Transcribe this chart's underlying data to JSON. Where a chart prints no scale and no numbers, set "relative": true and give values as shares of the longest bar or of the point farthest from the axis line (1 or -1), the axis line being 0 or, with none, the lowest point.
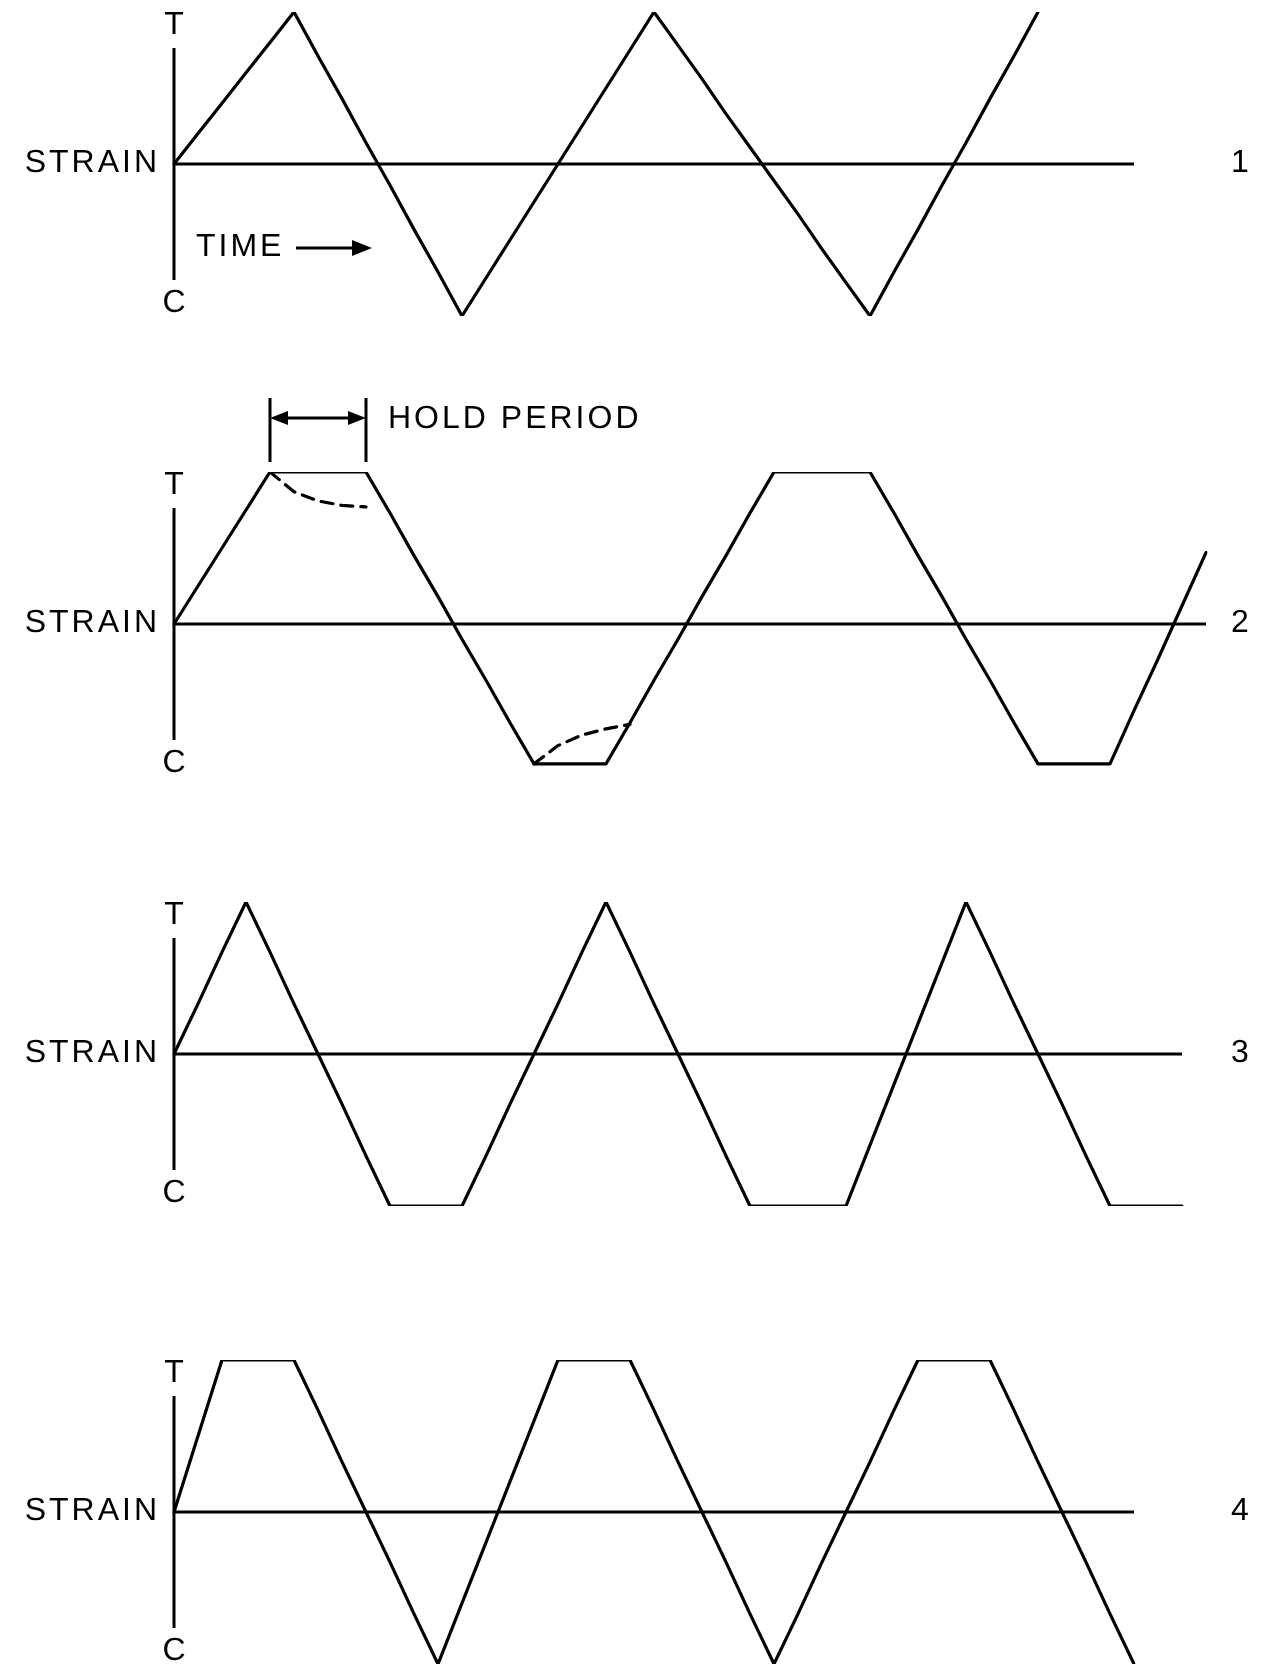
{
  "chart_data": [
    {
      "type": "line",
      "xlabel": "TIME",
      "ylabel": "STRAIN",
      "annotations": [
        "T",
        "C",
        "1"
      ],
      "relative": true,
      "categories": [
        null,
        null,
        null,
        null,
        null,
        null,
        null,
        null,
        null,
        null,
        null,
        null,
        null,
        null,
        null,
        null,
        null,
        null,
        null,
        null,
        null,
        null,
        null,
        null,
        null,
        null,
        null,
        null,
        null,
        null,
        null,
        null,
        null,
        null,
        null,
        null,
        null,
        null,
        null,
        null,
        null
      ],
      "series": [
        {
          "color": "#000000",
          "values": [
            0,
            0.2,
            0.4,
            0.6,
            0.8,
            1,
            0.71,
            0.43,
            0.14,
            -0.14,
            -0.43,
            -0.71,
            -1,
            -0.75,
            -0.5,
            -0.25,
            0,
            0.25,
            0.5,
            0.75,
            1,
            0.78,
            0.56,
            0.33,
            0.11,
            -0.11,
            -0.33,
            -0.56,
            -0.78,
            -1,
            -0.71,
            -0.43,
            -0.14,
            0.14,
            0.43,
            0.71,
            1,
            null,
            null,
            null,
            null
          ]
        }
      ]
    },
    {
      "type": "line",
      "ylabel": "STRAIN",
      "annotations": [
        "T",
        "C",
        "2",
        "HOLD PERIOD"
      ],
      "relative": true,
      "categories": [
        null,
        null,
        null,
        null,
        null,
        null,
        null,
        null,
        null,
        null,
        null,
        null,
        null,
        null,
        null,
        null,
        null,
        null,
        null,
        null,
        null,
        null,
        null,
        null,
        null,
        null,
        null,
        null,
        null,
        null,
        null,
        null,
        null,
        null,
        null,
        null,
        null,
        null,
        null,
        null,
        null,
        null,
        null,
        null
      ],
      "series": [
        {
          "color": "#000000",
          "values": [
            0,
            0.25,
            0.5,
            0.75,
            1,
            1,
            1,
            1,
            1,
            0.73,
            0.45,
            0.18,
            -0.1,
            -0.37,
            -0.65,
            -0.92,
            -0.92,
            -0.92,
            -0.92,
            -0.65,
            -0.37,
            -0.1,
            0.18,
            0.45,
            0.73,
            1,
            1,
            1,
            1,
            1,
            0.73,
            0.45,
            0.18,
            -0.1,
            -0.37,
            -0.65,
            -0.92,
            -0.92,
            -0.92,
            -0.92,
            -0.57,
            -0.23,
            0.12,
            0.47
          ]
        },
        {
          "color": "#000000",
          "line_style": "dashed",
          "values": [
            null,
            null,
            null,
            null,
            1,
            0.87,
            0.81,
            0.78,
            0.77,
            null,
            null,
            null,
            null,
            null,
            null,
            -0.92,
            -0.8,
            -0.73,
            -0.69,
            -0.66,
            null,
            null,
            null,
            null,
            null,
            null,
            null,
            null,
            null,
            null,
            null,
            null,
            null,
            null,
            null,
            null,
            null,
            null,
            null,
            null,
            null,
            null,
            null,
            null
          ]
        }
      ]
    },
    {
      "type": "line",
      "ylabel": "STRAIN",
      "annotations": [
        "T",
        "C",
        "3"
      ],
      "relative": true,
      "categories": [
        null,
        null,
        null,
        null,
        null,
        null,
        null,
        null,
        null,
        null,
        null,
        null,
        null,
        null,
        null,
        null,
        null,
        null,
        null,
        null,
        null,
        null,
        null,
        null,
        null,
        null,
        null,
        null,
        null,
        null,
        null,
        null,
        null,
        null,
        null,
        null,
        null,
        null,
        null,
        null,
        null,
        null,
        null
      ],
      "series": [
        {
          "color": "#000000",
          "values": [
            0,
            0.33,
            0.67,
            1,
            0.67,
            0.33,
            0,
            -0.33,
            -0.67,
            -1,
            -1,
            -1,
            -1,
            -0.67,
            -0.33,
            0,
            0.33,
            0.67,
            1,
            0.67,
            0.33,
            0,
            -0.33,
            -0.67,
            -1,
            -1,
            -1,
            -1,
            -1,
            -0.6,
            -0.2,
            0.2,
            0.6,
            1,
            0.67,
            0.33,
            0,
            -0.33,
            -0.67,
            -1,
            -1,
            -1,
            -1
          ]
        }
      ]
    },
    {
      "type": "line",
      "ylabel": "STRAIN",
      "annotations": [
        "T",
        "C",
        "4"
      ],
      "relative": true,
      "categories": [
        null,
        null,
        null,
        null,
        null,
        null,
        null,
        null,
        null,
        null,
        null,
        null,
        null,
        null,
        null,
        null,
        null,
        null,
        null,
        null,
        null,
        null,
        null,
        null,
        null,
        null,
        null,
        null,
        null,
        null,
        null,
        null,
        null,
        null,
        null,
        null,
        null,
        null,
        null,
        null,
        null
      ],
      "series": [
        {
          "color": "#000000",
          "values": [
            0,
            0.5,
            1,
            1,
            1,
            1,
            0.67,
            0.33,
            0,
            -0.33,
            -0.67,
            -1,
            -0.6,
            -0.2,
            0.2,
            0.6,
            1,
            1,
            1,
            1,
            0.67,
            0.33,
            0,
            -0.33,
            -0.67,
            -1,
            -0.67,
            -0.33,
            0,
            0.33,
            0.67,
            1,
            1,
            1,
            1,
            0.67,
            0.33,
            0,
            -0.33,
            -0.67,
            -1
          ]
        }
      ]
    }
  ]
}
